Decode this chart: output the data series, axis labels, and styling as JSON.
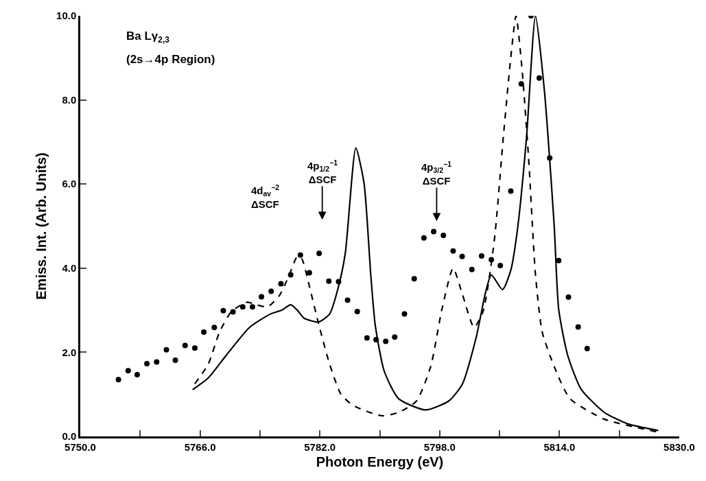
{
  "chart_data": {
    "type": "line",
    "xlabel": "Photon Energy (eV)",
    "ylabel": "Emiss. Int. (Arb. Units)",
    "xlim": [
      5750,
      5830
    ],
    "ylim": [
      0,
      10
    ],
    "xticks": [
      {
        "value": 5750,
        "label": "5750.0"
      },
      {
        "value": 5758,
        "label": null
      },
      {
        "value": 5766,
        "label": "5766.0"
      },
      {
        "value": 5774,
        "label": null
      },
      {
        "value": 5782,
        "label": "5782.0"
      },
      {
        "value": 5790,
        "label": null
      },
      {
        "value": 5798,
        "label": "5798.0"
      },
      {
        "value": 5806,
        "label": null
      },
      {
        "value": 5814,
        "label": "5814.0"
      },
      {
        "value": 5822,
        "label": null
      },
      {
        "value": 5830,
        "label": "5830.0"
      }
    ],
    "yticks": [
      {
        "value": 0,
        "label": "0.0"
      },
      {
        "value": 2,
        "label": "2.0"
      },
      {
        "value": 4,
        "label": "4.0"
      },
      {
        "value": 6,
        "label": "6.0"
      },
      {
        "value": 8,
        "label": "8.0"
      },
      {
        "value": 10,
        "label": "10.0"
      }
    ],
    "series": [
      {
        "type": "scatter",
        "color": "#000000",
        "marker": "circle",
        "x": [
          5755.1,
          5756.4,
          5757.6,
          5758.9,
          5760.2,
          5761.5,
          5762.7,
          5764.0,
          5765.3,
          5766.5,
          5767.9,
          5769.1,
          5770.4,
          5771.7,
          5773.0,
          5774.2,
          5775.5,
          5776.8,
          5778.1,
          5779.4,
          5780.6,
          5781.9,
          5783.2,
          5784.5,
          5785.7,
          5787.0,
          5788.3,
          5789.5,
          5790.8,
          5792.0,
          5793.3,
          5794.6,
          5795.9,
          5797.2,
          5798.5,
          5799.8,
          5801.0,
          5802.3,
          5803.6,
          5804.9,
          5806.1,
          5807.5,
          5808.9,
          5810.2,
          5811.3,
          5812.7,
          5813.9,
          5815.2,
          5816.5,
          5817.7
        ],
        "values": [
          1.35,
          1.56,
          1.47,
          1.73,
          1.77,
          2.06,
          1.81,
          2.16,
          2.1,
          2.48,
          2.59,
          2.99,
          2.96,
          3.08,
          3.08,
          3.32,
          3.45,
          3.63,
          3.84,
          4.31,
          3.89,
          4.35,
          3.69,
          3.68,
          3.24,
          2.97,
          2.34,
          2.3,
          2.26,
          2.36,
          2.91,
          3.75,
          4.72,
          4.87,
          4.78,
          4.41,
          4.28,
          3.97,
          4.29,
          4.2,
          4.06,
          5.83,
          8.38,
          10.0,
          8.52,
          6.62,
          4.18,
          3.31,
          2.6,
          2.09
        ]
      },
      {
        "color": "#000000",
        "line_style": "solid",
        "x": [
          5765.0,
          5767.1,
          5769.5,
          5772.6,
          5775.4,
          5776.9,
          5778.1,
          5779.0,
          5779.9,
          5781.8,
          5783.3,
          5784.5,
          5785.4,
          5786.8,
          5787.9,
          5788.8,
          5789.4,
          5790.6,
          5792.5,
          5796.1,
          5799.2,
          5801.0,
          5802.9,
          5804.1,
          5804.9,
          5806.4,
          5807.5,
          5808.4,
          5809.6,
          5810.8,
          5812.0,
          5813.3,
          5813.9,
          5815.1,
          5816.9,
          5820.0,
          5823.1,
          5827.2
        ],
        "values": [
          1.11,
          1.39,
          1.93,
          2.59,
          2.91,
          3.0,
          3.13,
          3.0,
          2.81,
          2.72,
          2.91,
          3.57,
          4.36,
          6.86,
          6.02,
          3.84,
          2.64,
          1.55,
          0.9,
          0.63,
          0.84,
          1.23,
          2.37,
          3.4,
          3.84,
          3.49,
          3.95,
          4.93,
          7.11,
          10.0,
          8.2,
          5.0,
          3.02,
          1.93,
          1.12,
          0.57,
          0.3,
          0.14
        ]
      },
      {
        "color": "#000000",
        "line_style": "dashed",
        "x": [
          5765.3,
          5767.1,
          5768.6,
          5770.2,
          5772.3,
          5773.5,
          5775.0,
          5776.6,
          5777.8,
          5779.0,
          5779.6,
          5780.6,
          5781.8,
          5783.3,
          5784.8,
          5786.4,
          5790.3,
          5792.5,
          5794.9,
          5796.8,
          5798.3,
          5799.8,
          5801.0,
          5802.6,
          5803.8,
          5805.3,
          5806.5,
          5807.5,
          5808.2,
          5809.0,
          5809.9,
          5810.8,
          5811.7,
          5813.3,
          5815.4,
          5820.0,
          5827.0
        ],
        "values": [
          1.25,
          1.72,
          2.48,
          2.97,
          3.19,
          3.13,
          3.08,
          3.35,
          3.79,
          4.28,
          4.22,
          3.57,
          2.7,
          1.72,
          1.01,
          0.74,
          0.49,
          0.57,
          0.84,
          1.66,
          3.02,
          4.0,
          3.4,
          2.59,
          2.97,
          4.66,
          7.11,
          9.01,
          10.0,
          8.74,
          6.56,
          3.84,
          2.48,
          1.66,
          0.9,
          0.41,
          0.11
        ]
      }
    ],
    "annotations": [
      "Ba Lγ$_{2,3}$",
      "(2s→4p Region)",
      "4d$_{av}$$^{−2}$\nΔSCF",
      "4p$_{1/2}$$^{−1}$\nΔSCF",
      "4p$_{3/2}$$^{−1}$\nΔSCF"
    ]
  }
}
